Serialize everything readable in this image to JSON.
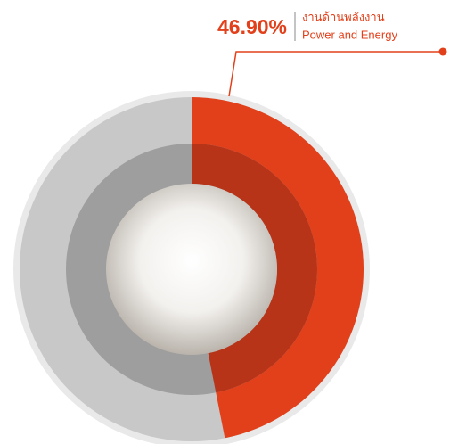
{
  "chart_data": {
    "type": "donut",
    "categories": [
      "Power and Energy"
    ],
    "category_labels_local": [
      "งานด้านพลังงาน"
    ],
    "values": [
      46.9
    ],
    "value_labels": [
      "46.90%"
    ],
    "color": "#e2401a",
    "inner_color": "#b83418",
    "rest_color": "#c8c8c8",
    "rest_inner_color": "#9e9e9e",
    "total": 100
  }
}
